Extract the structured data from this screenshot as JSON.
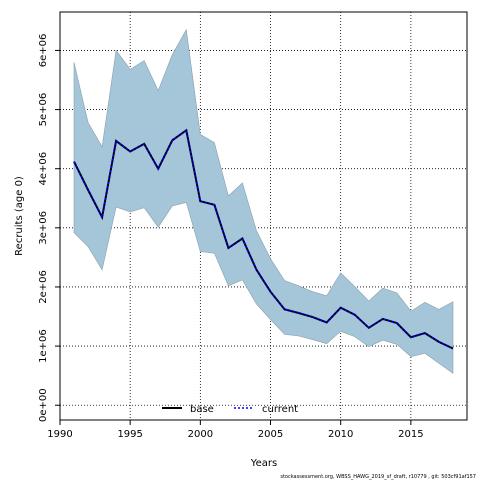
{
  "chart_data": {
    "type": "area",
    "title": "",
    "xlabel": "Years",
    "ylabel": "Recruits (age 0)",
    "xlim": [
      1990,
      2019
    ],
    "ylim": [
      -250000,
      6650000
    ],
    "x_ticks": [
      1990,
      1995,
      2000,
      2005,
      2010,
      2015
    ],
    "x_tick_labels": [
      "1990",
      "1995",
      "2000",
      "2005",
      "2010",
      "2015"
    ],
    "y_ticks": [
      0,
      1000000,
      2000000,
      3000000,
      4000000,
      5000000,
      6000000
    ],
    "y_tick_labels": [
      "0e+00",
      "1e+06",
      "2e+06",
      "3e+06",
      "4e+06",
      "5e+06",
      "6e+06"
    ],
    "grid": true,
    "legend_position": "bottom-center",
    "x": [
      1991,
      1992,
      1993,
      1994,
      1995,
      1996,
      1997,
      1998,
      1999,
      2000,
      2001,
      2002,
      2003,
      2004,
      2005,
      2006,
      2007,
      2008,
      2009,
      2010,
      2011,
      2012,
      2013,
      2014,
      2015,
      2016,
      2017,
      2018
    ],
    "band": {
      "upper": [
        5800000,
        4780000,
        4370000,
        6000000,
        5680000,
        5830000,
        5320000,
        5930000,
        6350000,
        4580000,
        4440000,
        3540000,
        3760000,
        2950000,
        2480000,
        2110000,
        2020000,
        1920000,
        1850000,
        2240000,
        2010000,
        1760000,
        1980000,
        1900000,
        1590000,
        1740000,
        1620000,
        1750000
      ],
      "lower": [
        2920000,
        2680000,
        2290000,
        3350000,
        3270000,
        3340000,
        3010000,
        3370000,
        3430000,
        2600000,
        2570000,
        2020000,
        2120000,
        1710000,
        1450000,
        1200000,
        1170000,
        1110000,
        1040000,
        1250000,
        1160000,
        990000,
        1100000,
        1030000,
        820000,
        880000,
        710000,
        540000
      ]
    },
    "series": [
      {
        "name": "base",
        "style": "solid",
        "color": "#000000",
        "values": [
          4120000,
          3640000,
          3180000,
          4470000,
          4290000,
          4420000,
          4000000,
          4480000,
          4650000,
          3450000,
          3390000,
          2660000,
          2820000,
          2290000,
          1920000,
          1620000,
          1560000,
          1490000,
          1400000,
          1650000,
          1530000,
          1310000,
          1460000,
          1390000,
          1150000,
          1220000,
          1070000,
          960000
        ]
      },
      {
        "name": "current",
        "style": "dashed",
        "color": "#0000ff",
        "values": [
          4120000,
          3640000,
          3180000,
          4470000,
          4290000,
          4420000,
          4000000,
          4480000,
          4650000,
          3450000,
          3390000,
          2660000,
          2820000,
          2290000,
          1920000,
          1620000,
          1560000,
          1490000,
          1400000,
          1650000,
          1530000,
          1310000,
          1460000,
          1390000,
          1150000,
          1220000,
          1070000,
          960000
        ]
      }
    ],
    "colors": {
      "band_fill": "#a5c5d8",
      "band_stroke": "#8aa0ad",
      "grid": "#000000"
    }
  },
  "footer_text": "stockassessment.org, WBSS_HAWG_2019_sf_draft, r10779 , git: 503cf91af157"
}
